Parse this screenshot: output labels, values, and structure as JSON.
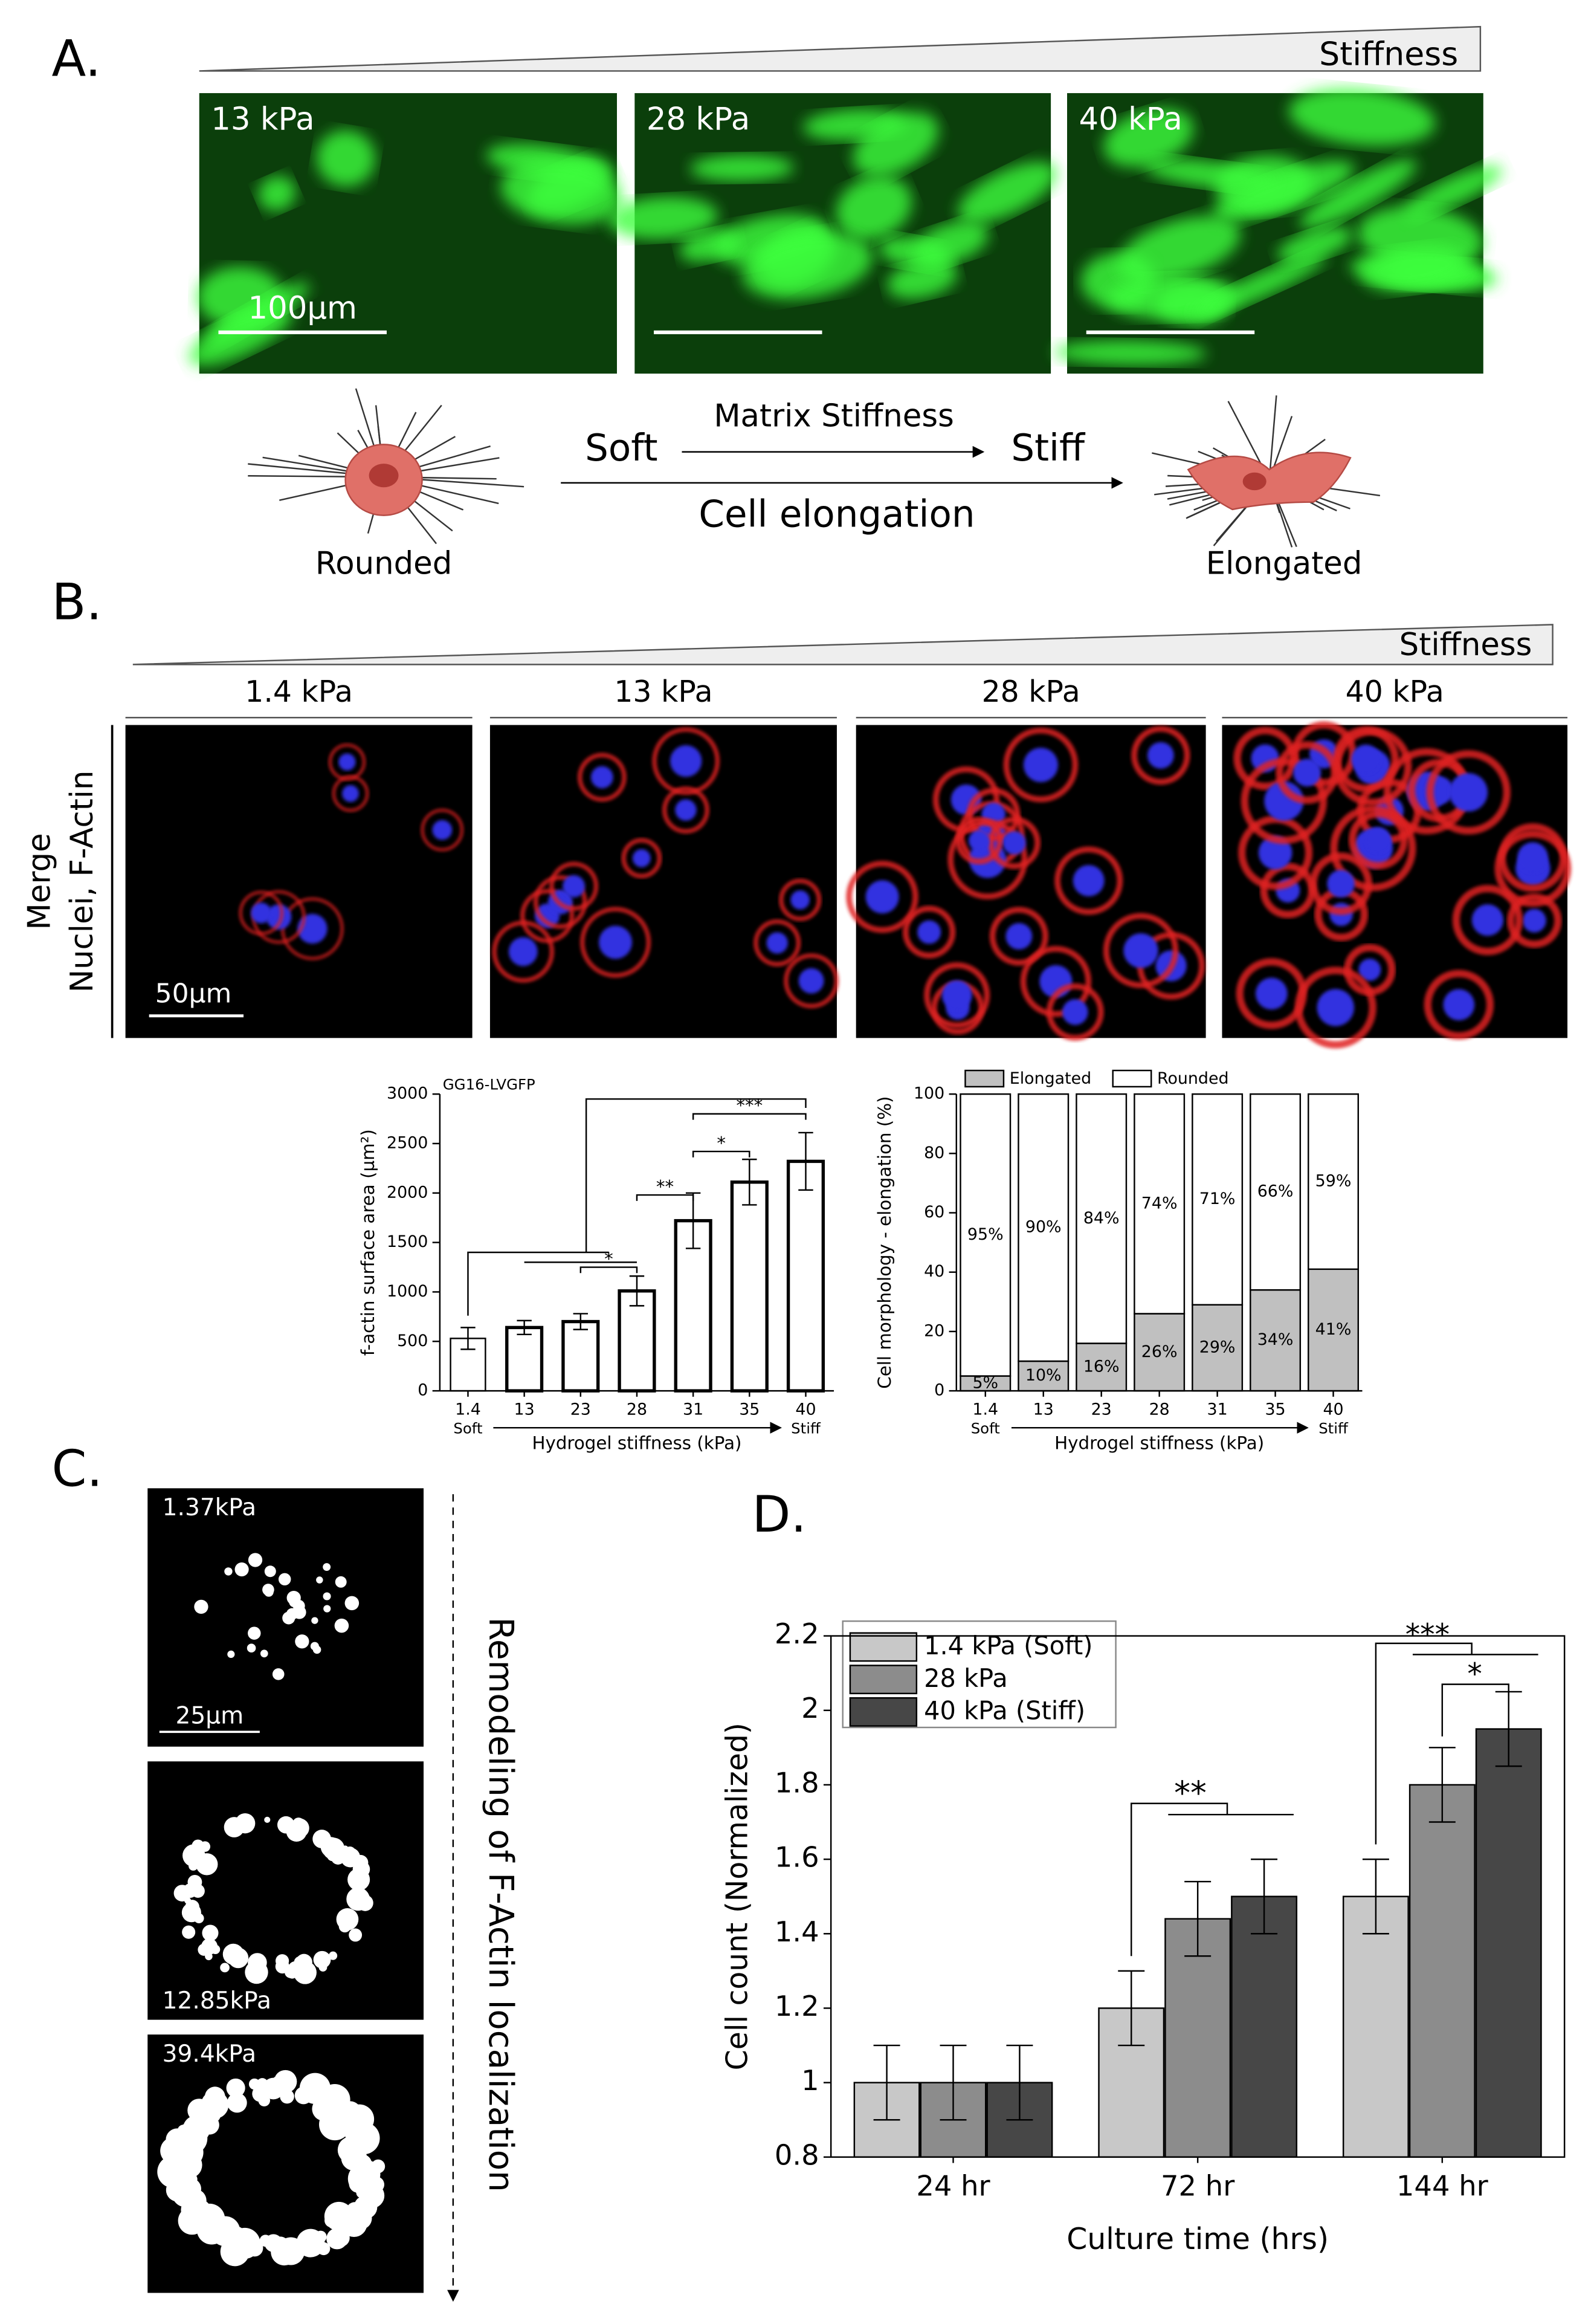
{
  "panel_a": {
    "label": "A.",
    "stiffness": "Stiffness",
    "images": [
      "13 kPa",
      "28 kPa",
      "40 kPa"
    ],
    "scale_bar": "100µm",
    "rounded": "Rounded",
    "elongated": "Elongated",
    "soft": "Soft",
    "stiff": "Stiff",
    "matrix_stiffness": "Matrix Stiffness",
    "cell_elongation": "Cell elongation"
  },
  "panel_b": {
    "label": "B.",
    "stiffness": "Stiffness",
    "images": [
      "1.4 kPa",
      "13 kPa",
      "28 kPa",
      "40 kPa"
    ],
    "row_label": [
      "Merge",
      "Nuclei, F-Actin"
    ],
    "scale_bar": "50µm"
  },
  "panel_c": {
    "label": "C.",
    "images": [
      "1.37kPa",
      "12.85kPa",
      "39.4kPa"
    ],
    "scale_bar": "25µm",
    "arrow_label": "Remodeling of F-Actin localization"
  },
  "panel_d": {
    "label": "D."
  },
  "chart_data": [
    {
      "type": "bar",
      "annotation": "GG16-LVGFP",
      "categories": [
        "1.4",
        "13",
        "23",
        "28",
        "31",
        "35",
        "40"
      ],
      "x_start_label": "Soft",
      "x_end_label": "Stiff",
      "xlabel": "Hydrogel stiffness (kPa)",
      "ylabel": "f-actin surface area (µm²)",
      "values": [
        530,
        640,
        700,
        1010,
        1720,
        2110,
        2320
      ],
      "errors": [
        110,
        70,
        80,
        150,
        280,
        230,
        290
      ],
      "color": "#000000",
      "ylim": [
        0,
        3000
      ],
      "yticks": [
        0,
        500,
        1000,
        1500,
        2000,
        2500,
        3000
      ],
      "significance": [
        "*",
        "**",
        "*",
        "***"
      ]
    },
    {
      "type": "stacked_bar",
      "categories": [
        "1.4",
        "13",
        "23",
        "28",
        "31",
        "35",
        "40"
      ],
      "x_start_label": "Soft",
      "x_end_label": "Stiff",
      "xlabel": "Hydrogel stiffness (kPa)",
      "ylabel": "Cell morphology - elongation (%)",
      "ylim": [
        0,
        100
      ],
      "yticks": [
        0,
        20,
        40,
        60,
        80,
        100
      ],
      "series": [
        {
          "name": "Elongated",
          "color": "#c0c0c0",
          "values": [
            5,
            10,
            16,
            26,
            29,
            34,
            41
          ],
          "value_labels": [
            "5%",
            "10%",
            "16%",
            "26%",
            "29%",
            "34%",
            "41%"
          ]
        },
        {
          "name": "Rounded",
          "color": "#ffffff",
          "values": [
            95,
            90,
            84,
            74,
            71,
            66,
            59
          ],
          "value_labels": [
            "95%",
            "90%",
            "84%",
            "74%",
            "71%",
            "66%",
            "59%"
          ]
        }
      ]
    },
    {
      "type": "grouped_bar",
      "categories": [
        "24 hr",
        "72 hr",
        "144 hr"
      ],
      "xlabel": "Culture time (hrs)",
      "ylabel": "Cell count (Normalized)",
      "ylim": [
        0.8,
        2.2
      ],
      "yticks": [
        0.8,
        1,
        1.2,
        1.4,
        1.6,
        1.8,
        2,
        2.2
      ],
      "significance": [
        "**",
        "***",
        "*"
      ],
      "series": [
        {
          "name": "1.4 kPa (Soft)",
          "color": "#c8c8c8",
          "values": [
            1,
            1.2,
            1.5
          ],
          "errors": [
            0.1,
            0.1,
            0.1
          ]
        },
        {
          "name": "28 kPa",
          "color": "#8c8c8c",
          "values": [
            1,
            1.44,
            1.8
          ],
          "errors": [
            0.1,
            0.1,
            0.1
          ]
        },
        {
          "name": "40 kPa (Stiff)",
          "color": "#474747",
          "values": [
            1,
            1.5,
            1.95
          ],
          "errors": [
            0.1,
            0.1,
            0.1
          ]
        }
      ]
    }
  ]
}
